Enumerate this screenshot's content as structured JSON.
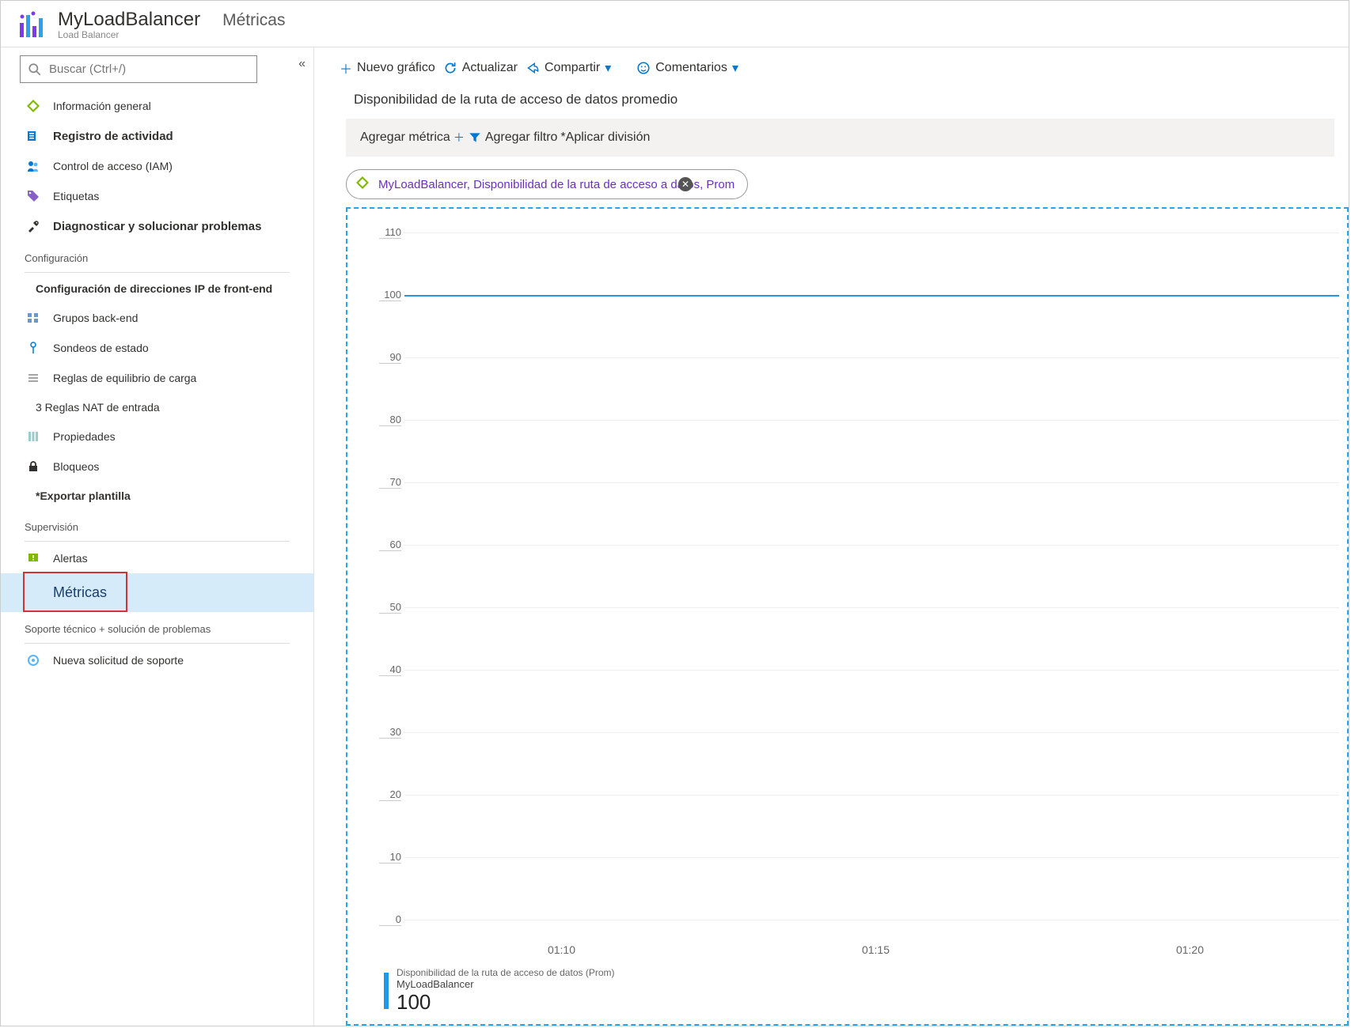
{
  "header": {
    "title": "MyLoadBalancer",
    "subtitle": "Load Balancer",
    "section": "Métricas"
  },
  "search": {
    "placeholder": "Buscar (Ctrl+/)"
  },
  "sidebar": {
    "top_items": [
      {
        "label": "Información general",
        "icon": "diamond",
        "bold": false
      },
      {
        "label": "Registro de actividad",
        "icon": "activity",
        "bold": true
      },
      {
        "label": "Control de acceso (IAM)",
        "icon": "people",
        "bold": false
      },
      {
        "label": "Etiquetas",
        "icon": "tag",
        "bold": false
      },
      {
        "label": "Diagnosticar y solucionar problemas",
        "icon": "tools",
        "bold": true
      }
    ],
    "group_config_label": "Configuración",
    "config_items": [
      {
        "label": "Configuración de direcciones IP de front-end",
        "icon": "",
        "bold": true,
        "indent": true
      },
      {
        "label": "Grupos back-end",
        "icon": "pool",
        "bold": false
      },
      {
        "label": "Sondeos de estado",
        "icon": "probe",
        "bold": false
      },
      {
        "label": "Reglas de equilibrio de carga",
        "icon": "rules",
        "bold": false
      },
      {
        "label": "3 Reglas NAT de entrada",
        "icon": "",
        "bold": false,
        "indent": true
      },
      {
        "label": "Propiedades",
        "icon": "props",
        "bold": false
      },
      {
        "label": "Bloqueos",
        "icon": "lock",
        "bold": false
      },
      {
        "label": "*Exportar plantilla",
        "icon": "",
        "bold": true,
        "indent": true
      }
    ],
    "group_monitor_label": "Supervisión",
    "monitor_items": [
      {
        "label": "Alertas",
        "icon": "alert",
        "bold": false
      },
      {
        "label": "Métricas",
        "icon": "",
        "bold": false,
        "selected": true
      }
    ],
    "group_support_label": "Soporte técnico + solución de problemas",
    "support_items": [
      {
        "label": "Nueva solicitud de soporte",
        "icon": "support",
        "bold": false
      }
    ]
  },
  "toolbar": {
    "new_chart": "Nuevo gráfico",
    "refresh": "Actualizar",
    "share": "Compartir",
    "feedback": "Comentarios"
  },
  "chart": {
    "title": "Disponibilidad de la ruta de acceso de datos promedio",
    "add_metric": "Agregar métrica",
    "add_filter": "Agregar filtro",
    "apply_split": "*Aplicar división",
    "chip_text": "MyLoadBalancer, Disponibilidad de la ruta de acceso a datos, Prom",
    "type": "line",
    "y_ticks": [
      0,
      10,
      20,
      30,
      40,
      50,
      60,
      70,
      80,
      90,
      100,
      110
    ],
    "ylim": [
      0,
      110
    ],
    "x_ticks": [
      "01:10",
      "01:15",
      "01:20"
    ],
    "series_value": 100,
    "line_color": "#1e98e6",
    "grid_color": "#eeeeee",
    "legend": {
      "name": "Disponibilidad de la ruta de acceso de datos (Prom)",
      "resource": "MyLoadBalancer",
      "value": "100"
    }
  }
}
